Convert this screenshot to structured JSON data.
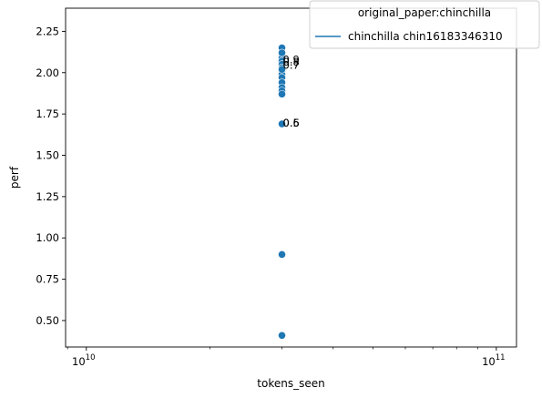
{
  "chart_data": {
    "type": "scatter",
    "xlabel": "tokens_seen",
    "ylabel": "perf",
    "xscale": "log",
    "xlim": [
      8900000000.0,
      112000000000.0
    ],
    "ylim": [
      0.34,
      2.39
    ],
    "grid": false,
    "x_ticks": [
      {
        "value": 10000000000.0,
        "base": "10",
        "exp": "10"
      },
      {
        "value": 100000000000.0,
        "base": "10",
        "exp": "11"
      }
    ],
    "y_ticks": [
      {
        "value": 0.5,
        "label": "0.50"
      },
      {
        "value": 0.75,
        "label": "0.75"
      },
      {
        "value": 1.0,
        "label": "1.00"
      },
      {
        "value": 1.25,
        "label": "1.25"
      },
      {
        "value": 1.5,
        "label": "1.50"
      },
      {
        "value": 1.75,
        "label": "1.75"
      },
      {
        "value": 2.0,
        "label": "2.00"
      },
      {
        "value": 2.25,
        "label": "2.25"
      }
    ],
    "series": [
      {
        "name": "chinchilla chin16183346310",
        "color": "#1f77b4",
        "x": [
          30000000000.0,
          30000000000.0,
          30000000000.0,
          30000000000.0,
          30000000000.0,
          30000000000.0,
          30000000000.0,
          30000000000.0,
          30000000000.0,
          30000000000.0,
          30000000000.0,
          30000000000.0,
          30000000000.0,
          30000000000.0,
          30000000000.0,
          30000000000.0,
          30000000000.0,
          30000000000.0
        ],
        "y": [
          2.15,
          2.11,
          2.09,
          2.07,
          2.05,
          2.03,
          2.01,
          1.99,
          1.97,
          1.94,
          1.91,
          1.89,
          1.87,
          1.69,
          0.9,
          0.41,
          2.12,
          2.02
        ]
      }
    ],
    "annotations": [
      {
        "text": "0.9",
        "x": 30000000000.0,
        "y": 2.08
      },
      {
        "text": "0.8",
        "x": 30000000000.0,
        "y": 2.065
      },
      {
        "text": "0.7",
        "x": 30000000000.0,
        "y": 2.045
      },
      {
        "text": "0.6",
        "x": 30000000000.0,
        "y": 1.695
      },
      {
        "text": "0.5",
        "x": 30000000000.0,
        "y": 1.695
      }
    ],
    "legend": {
      "title": "original_paper:chinchilla",
      "placement": "top-right"
    }
  }
}
